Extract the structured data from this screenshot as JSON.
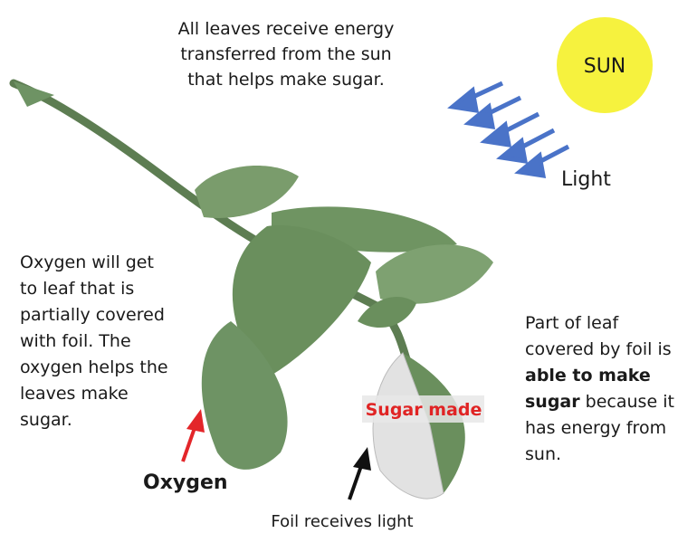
{
  "top_text": {
    "lines": [
      "All leaves receive energy",
      "transferred from the sun",
      "that helps make sugar."
    ]
  },
  "sun": {
    "label": "SUN"
  },
  "light": {
    "label": "Light"
  },
  "left_text": {
    "lines": [
      "Oxygen will get",
      "to leaf that is",
      "partially covered",
      "with foil. The",
      "oxygen helps the",
      "leaves make",
      "sugar."
    ]
  },
  "right_text": {
    "lines": [
      [
        {
          "text": "Part of leaf",
          "bold": false
        }
      ],
      [
        {
          "text": "covered by foil is",
          "bold": false
        }
      ],
      [
        {
          "text": "able to make",
          "bold": true
        }
      ],
      [
        {
          "text": "sugar",
          "bold": true
        },
        {
          "text": " because it",
          "bold": false
        }
      ],
      [
        {
          "text": "has energy from",
          "bold": false
        }
      ],
      [
        {
          "text": "sun.",
          "bold": false
        }
      ]
    ]
  },
  "oxygen": {
    "label": "Oxygen"
  },
  "sugar_made": {
    "label": "Sugar made"
  },
  "foil": {
    "label": "Foil receives light"
  }
}
